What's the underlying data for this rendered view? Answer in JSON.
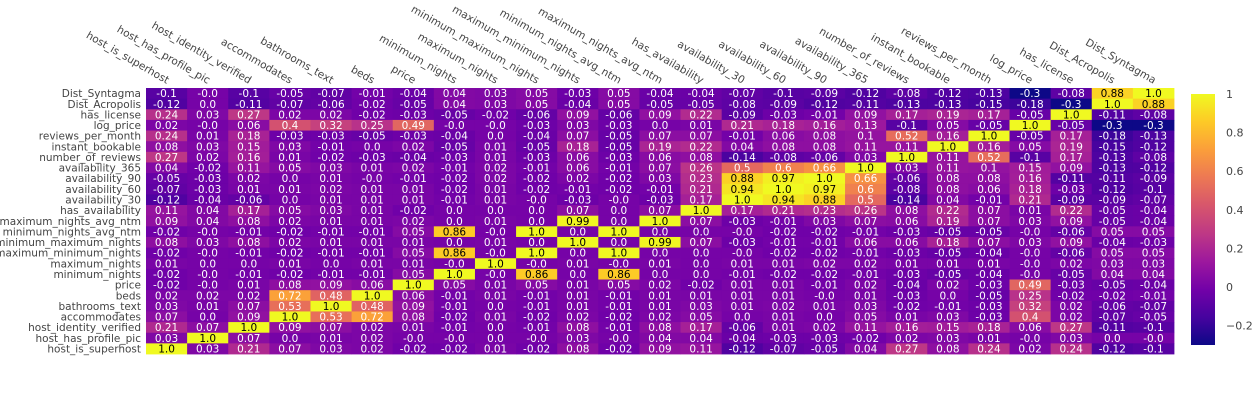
{
  "chart_data": {
    "type": "heatmap",
    "title": "",
    "x_labels": [
      "host_is_superhost",
      "host_has_profile_pic",
      "host_identity_verified",
      "accommodates",
      "bathrooms_text",
      "beds",
      "price",
      "minimum_nights",
      "maximum_nights",
      "minimum_maximum_nights",
      "maximum_minimum_nights",
      "minimum_nights_avg_ntm",
      "maximum_nights_avg_ntm",
      "has_availability",
      "availability_30",
      "availability_60",
      "availability_90",
      "availability_365",
      "number_of_reviews",
      "instant_bookable",
      "reviews_per_month",
      "log_price",
      "has_license",
      "Dist_Acropolis",
      "Dist_Syntagma"
    ],
    "y_labels": [
      "Dist_Syntagma",
      "Dist_Acropolis",
      "has_license",
      "log_price",
      "reviews_per_month",
      "instant_bookable",
      "number_of_reviews",
      "availability_365",
      "availability_90",
      "availability_60",
      "availability_30",
      "has_availability",
      "maximum_nights_avg_ntm",
      "minimum_nights_avg_ntm",
      "minimum_maximum_nights",
      "maximum_minimum_nights",
      "maximum_nights",
      "minimum_nights",
      "price",
      "beds",
      "bathrooms_text",
      "accommodates",
      "host_identity_verified",
      "host_has_profile_pic",
      "host_is_superhost"
    ],
    "z": [
      [
        "-0.1",
        "-0.0",
        "-0.1",
        "-0.05",
        "-0.07",
        "-0.01",
        "-0.04",
        "0.04",
        "0.03",
        "0.05",
        "-0.03",
        "0.05",
        "-0.04",
        "-0.04",
        "-0.07",
        "-0.1",
        "-0.09",
        "-0.12",
        "-0.08",
        "-0.12",
        "-0.13",
        "-0.3",
        "-0.08",
        "0.88",
        "1.0"
      ],
      [
        "-0.12",
        "0.0",
        "-0.11",
        "-0.07",
        "-0.06",
        "-0.02",
        "-0.05",
        "0.04",
        "0.03",
        "0.05",
        "-0.04",
        "0.05",
        "-0.05",
        "-0.05",
        "-0.08",
        "-0.09",
        "-0.12",
        "-0.11",
        "-0.13",
        "-0.13",
        "-0.15",
        "-0.18",
        "-0.3",
        "1.0",
        "0.88"
      ],
      [
        "0.24",
        "0.03",
        "0.27",
        "0.02",
        "0.02",
        "-0.02",
        "-0.03",
        "-0.05",
        "-0.02",
        "-0.06",
        "0.09",
        "-0.06",
        "0.09",
        "0.22",
        "-0.09",
        "-0.03",
        "-0.01",
        "0.09",
        "0.17",
        "0.19",
        "0.17",
        "-0.05",
        "1.0",
        "-0.11",
        "-0.08"
      ],
      [
        "0.02",
        "-0.0",
        "0.06",
        "0.4",
        "0.32",
        "0.25",
        "0.49",
        "-0.0",
        "-0.0",
        "-0.03",
        "0.03",
        "-0.03",
        "0.0",
        "0.01",
        "0.21",
        "0.18",
        "0.16",
        "0.13",
        "-0.1",
        "0.05",
        "-0.05",
        "1.0",
        "-0.05",
        "-0.3",
        "-0.3"
      ],
      [
        "0.24",
        "0.01",
        "0.18",
        "-0.03",
        "-0.03",
        "-0.05",
        "-0.03",
        "-0.04",
        "0.0",
        "-0.04",
        "0.07",
        "-0.05",
        "0.07",
        "0.07",
        "-0.01",
        "0.06",
        "0.08",
        "0.1",
        "0.52",
        "0.16",
        "1.0",
        "-0.05",
        "0.17",
        "-0.18",
        "-0.13"
      ],
      [
        "0.08",
        "0.03",
        "0.15",
        "0.03",
        "-0.01",
        "0.0",
        "0.02",
        "-0.05",
        "0.01",
        "-0.05",
        "0.18",
        "-0.05",
        "0.19",
        "0.22",
        "0.04",
        "0.08",
        "0.08",
        "0.11",
        "0.11",
        "1.0",
        "0.16",
        "0.05",
        "0.19",
        "-0.15",
        "-0.12"
      ],
      [
        "0.27",
        "0.02",
        "0.16",
        "0.01",
        "-0.02",
        "-0.03",
        "-0.04",
        "-0.03",
        "0.01",
        "-0.03",
        "0.06",
        "-0.03",
        "0.06",
        "0.08",
        "-0.14",
        "-0.08",
        "-0.06",
        "0.03",
        "1.0",
        "0.11",
        "0.52",
        "-0.1",
        "0.17",
        "-0.13",
        "-0.08"
      ],
      [
        "0.04",
        "-0.02",
        "0.11",
        "0.05",
        "0.03",
        "0.01",
        "0.02",
        "-0.01",
        "0.02",
        "-0.01",
        "0.06",
        "-0.01",
        "0.07",
        "0.26",
        "0.5",
        "0.6",
        "0.66",
        "1.0",
        "0.03",
        "0.11",
        "0.1",
        "0.15",
        "0.09",
        "-0.13",
        "-0.12"
      ],
      [
        "-0.05",
        "-0.03",
        "0.02",
        "0.0",
        "0.01",
        "-0.0",
        "-0.01",
        "-0.02",
        "0.02",
        "-0.02",
        "0.02",
        "-0.02",
        "0.03",
        "0.23",
        "0.88",
        "0.97",
        "1.0",
        "0.66",
        "-0.06",
        "0.08",
        "0.08",
        "0.16",
        "-0.11",
        "-0.11",
        "-0.09"
      ],
      [
        "-0.07",
        "-0.03",
        "0.01",
        "0.01",
        "0.02",
        "0.01",
        "0.01",
        "-0.02",
        "0.01",
        "-0.02",
        "-0.01",
        "-0.02",
        "-0.01",
        "0.21",
        "0.94",
        "1.0",
        "0.97",
        "0.6",
        "-0.08",
        "0.08",
        "0.06",
        "0.18",
        "-0.03",
        "-0.12",
        "-0.1"
      ],
      [
        "-0.12",
        "-0.04",
        "-0.06",
        "0.0",
        "0.01",
        "0.01",
        "0.01",
        "-0.01",
        "0.01",
        "-0.0",
        "-0.03",
        "-0.0",
        "-0.03",
        "0.17",
        "1.0",
        "0.94",
        "0.88",
        "0.5",
        "-0.14",
        "0.04",
        "-0.01",
        "0.21",
        "-0.09",
        "-0.09",
        "-0.07"
      ],
      [
        "0.11",
        "0.04",
        "0.17",
        "0.05",
        "0.03",
        "0.01",
        "-0.02",
        "0.0",
        "0.0",
        "0.0",
        "0.07",
        "0.0",
        "0.07",
        "1.0",
        "0.17",
        "0.21",
        "0.23",
        "0.26",
        "0.08",
        "0.22",
        "0.07",
        "0.01",
        "0.22",
        "-0.05",
        "-0.04"
      ],
      [
        "0.09",
        "0.04",
        "0.08",
        "0.02",
        "0.01",
        "0.01",
        "0.02",
        "0.0",
        "0.01",
        "0.0",
        "0.99",
        "0.0",
        "1.0",
        "0.07",
        "-0.03",
        "-0.01",
        "0.03",
        "0.07",
        "0.06",
        "0.19",
        "0.07",
        "0.03",
        "0.09",
        "-0.05",
        "-0.04"
      ],
      [
        "-0.02",
        "-0.0",
        "-0.01",
        "-0.02",
        "-0.01",
        "-0.01",
        "0.05",
        "0.86",
        "-0.0",
        "1.0",
        "0.0",
        "1.0",
        "0.0",
        "0.0",
        "-0.0",
        "-0.02",
        "-0.02",
        "-0.01",
        "-0.03",
        "-0.05",
        "-0.05",
        "-0.0",
        "-0.06",
        "0.05",
        "0.05"
      ],
      [
        "0.08",
        "0.03",
        "0.08",
        "0.02",
        "0.01",
        "0.01",
        "0.01",
        "0.0",
        "0.01",
        "0.0",
        "1.0",
        "0.0",
        "0.99",
        "0.07",
        "-0.03",
        "-0.01",
        "-0.01",
        "0.06",
        "0.06",
        "0.18",
        "0.07",
        "0.03",
        "0.09",
        "-0.04",
        "-0.03"
      ],
      [
        "-0.02",
        "-0.0",
        "-0.01",
        "-0.02",
        "-0.01",
        "-0.01",
        "0.05",
        "0.86",
        "-0.0",
        "1.0",
        "0.0",
        "1.0",
        "0.0",
        "0.0",
        "-0.0",
        "-0.02",
        "-0.02",
        "-0.01",
        "-0.03",
        "-0.05",
        "-0.04",
        "-0.0",
        "-0.06",
        "0.05",
        "0.05"
      ],
      [
        "0.01",
        "0.0",
        "0.0",
        "0.01",
        "0.0",
        "0.01",
        "0.01",
        "-0.0",
        "1.0",
        "-0.0",
        "0.01",
        "-0.0",
        "0.01",
        "0.0",
        "0.01",
        "0.01",
        "0.02",
        "0.02",
        "0.01",
        "0.01",
        "0.01",
        "-0.0",
        "0.02",
        "0.03",
        "0.03"
      ],
      [
        "-0.02",
        "-0.0",
        "-0.01",
        "-0.02",
        "-0.01",
        "-0.01",
        "0.05",
        "1.0",
        "-0.0",
        "0.86",
        "0.0",
        "0.86",
        "0.0",
        "0.0",
        "-0.01",
        "-0.02",
        "-0.02",
        "-0.01",
        "-0.03",
        "-0.05",
        "-0.04",
        "-0.0",
        "-0.05",
        "0.04",
        "0.04"
      ],
      [
        "-0.02",
        "-0.0",
        "0.01",
        "0.08",
        "0.09",
        "0.06",
        "1.0",
        "0.05",
        "0.01",
        "0.05",
        "0.01",
        "0.05",
        "0.02",
        "-0.02",
        "0.01",
        "0.01",
        "-0.01",
        "0.02",
        "-0.04",
        "0.02",
        "-0.03",
        "0.49",
        "-0.03",
        "-0.05",
        "-0.04"
      ],
      [
        "0.02",
        "0.02",
        "0.02",
        "0.72",
        "0.48",
        "1.0",
        "0.06",
        "-0.01",
        "0.01",
        "-0.01",
        "0.01",
        "-0.01",
        "0.01",
        "0.01",
        "0.01",
        "0.01",
        "-0.0",
        "0.01",
        "-0.03",
        "0.0",
        "-0.05",
        "0.25",
        "-0.02",
        "-0.02",
        "-0.01"
      ],
      [
        "0.03",
        "0.01",
        "0.07",
        "0.53",
        "1.0",
        "0.48",
        "0.09",
        "-0.01",
        "0.0",
        "-0.01",
        "0.01",
        "-0.01",
        "0.01",
        "0.03",
        "0.01",
        "0.02",
        "0.01",
        "0.03",
        "-0.02",
        "-0.01",
        "-0.03",
        "0.32",
        "0.02",
        "-0.06",
        "-0.07"
      ],
      [
        "0.07",
        "0.0",
        "0.09",
        "1.0",
        "0.53",
        "0.72",
        "0.08",
        "-0.02",
        "0.01",
        "-0.02",
        "0.02",
        "-0.02",
        "0.02",
        "0.05",
        "0.0",
        "0.01",
        "0.0",
        "0.05",
        "0.01",
        "0.03",
        "-0.03",
        "0.4",
        "0.02",
        "-0.07",
        "-0.05"
      ],
      [
        "0.21",
        "0.07",
        "1.0",
        "0.09",
        "0.07",
        "0.02",
        "0.01",
        "-0.01",
        "0.0",
        "-0.01",
        "0.08",
        "-0.01",
        "0.08",
        "0.17",
        "-0.06",
        "0.01",
        "0.02",
        "0.11",
        "0.16",
        "0.15",
        "0.18",
        "0.06",
        "0.27",
        "-0.11",
        "-0.1"
      ],
      [
        "0.03",
        "1.0",
        "0.07",
        "0.0",
        "0.01",
        "0.02",
        "-0.0",
        "-0.0",
        "0.0",
        "-0.0",
        "0.03",
        "-0.0",
        "0.04",
        "0.04",
        "-0.04",
        "-0.03",
        "-0.03",
        "-0.02",
        "0.02",
        "0.03",
        "0.01",
        "-0.0",
        "0.03",
        "0.0",
        "-0.0"
      ],
      [
        "1.0",
        "0.03",
        "0.21",
        "0.07",
        "0.03",
        "0.02",
        "-0.02",
        "-0.02",
        "0.01",
        "-0.02",
        "0.08",
        "-0.02",
        "0.09",
        "0.11",
        "-0.12",
        "-0.07",
        "-0.05",
        "0.04",
        "0.27",
        "0.08",
        "0.24",
        "0.02",
        "0.24",
        "-0.12",
        "-0.1"
      ]
    ],
    "zmin": -0.3,
    "zmax": 1.0,
    "colorscale": "plasma",
    "colorbar_ticks": [
      "1",
      "0.8",
      "0.6",
      "0.4",
      "0.2",
      "0",
      "−0.2"
    ],
    "colorbar_tick_values": [
      1,
      0.8,
      0.6,
      0.4,
      0.2,
      0,
      -0.2
    ]
  }
}
